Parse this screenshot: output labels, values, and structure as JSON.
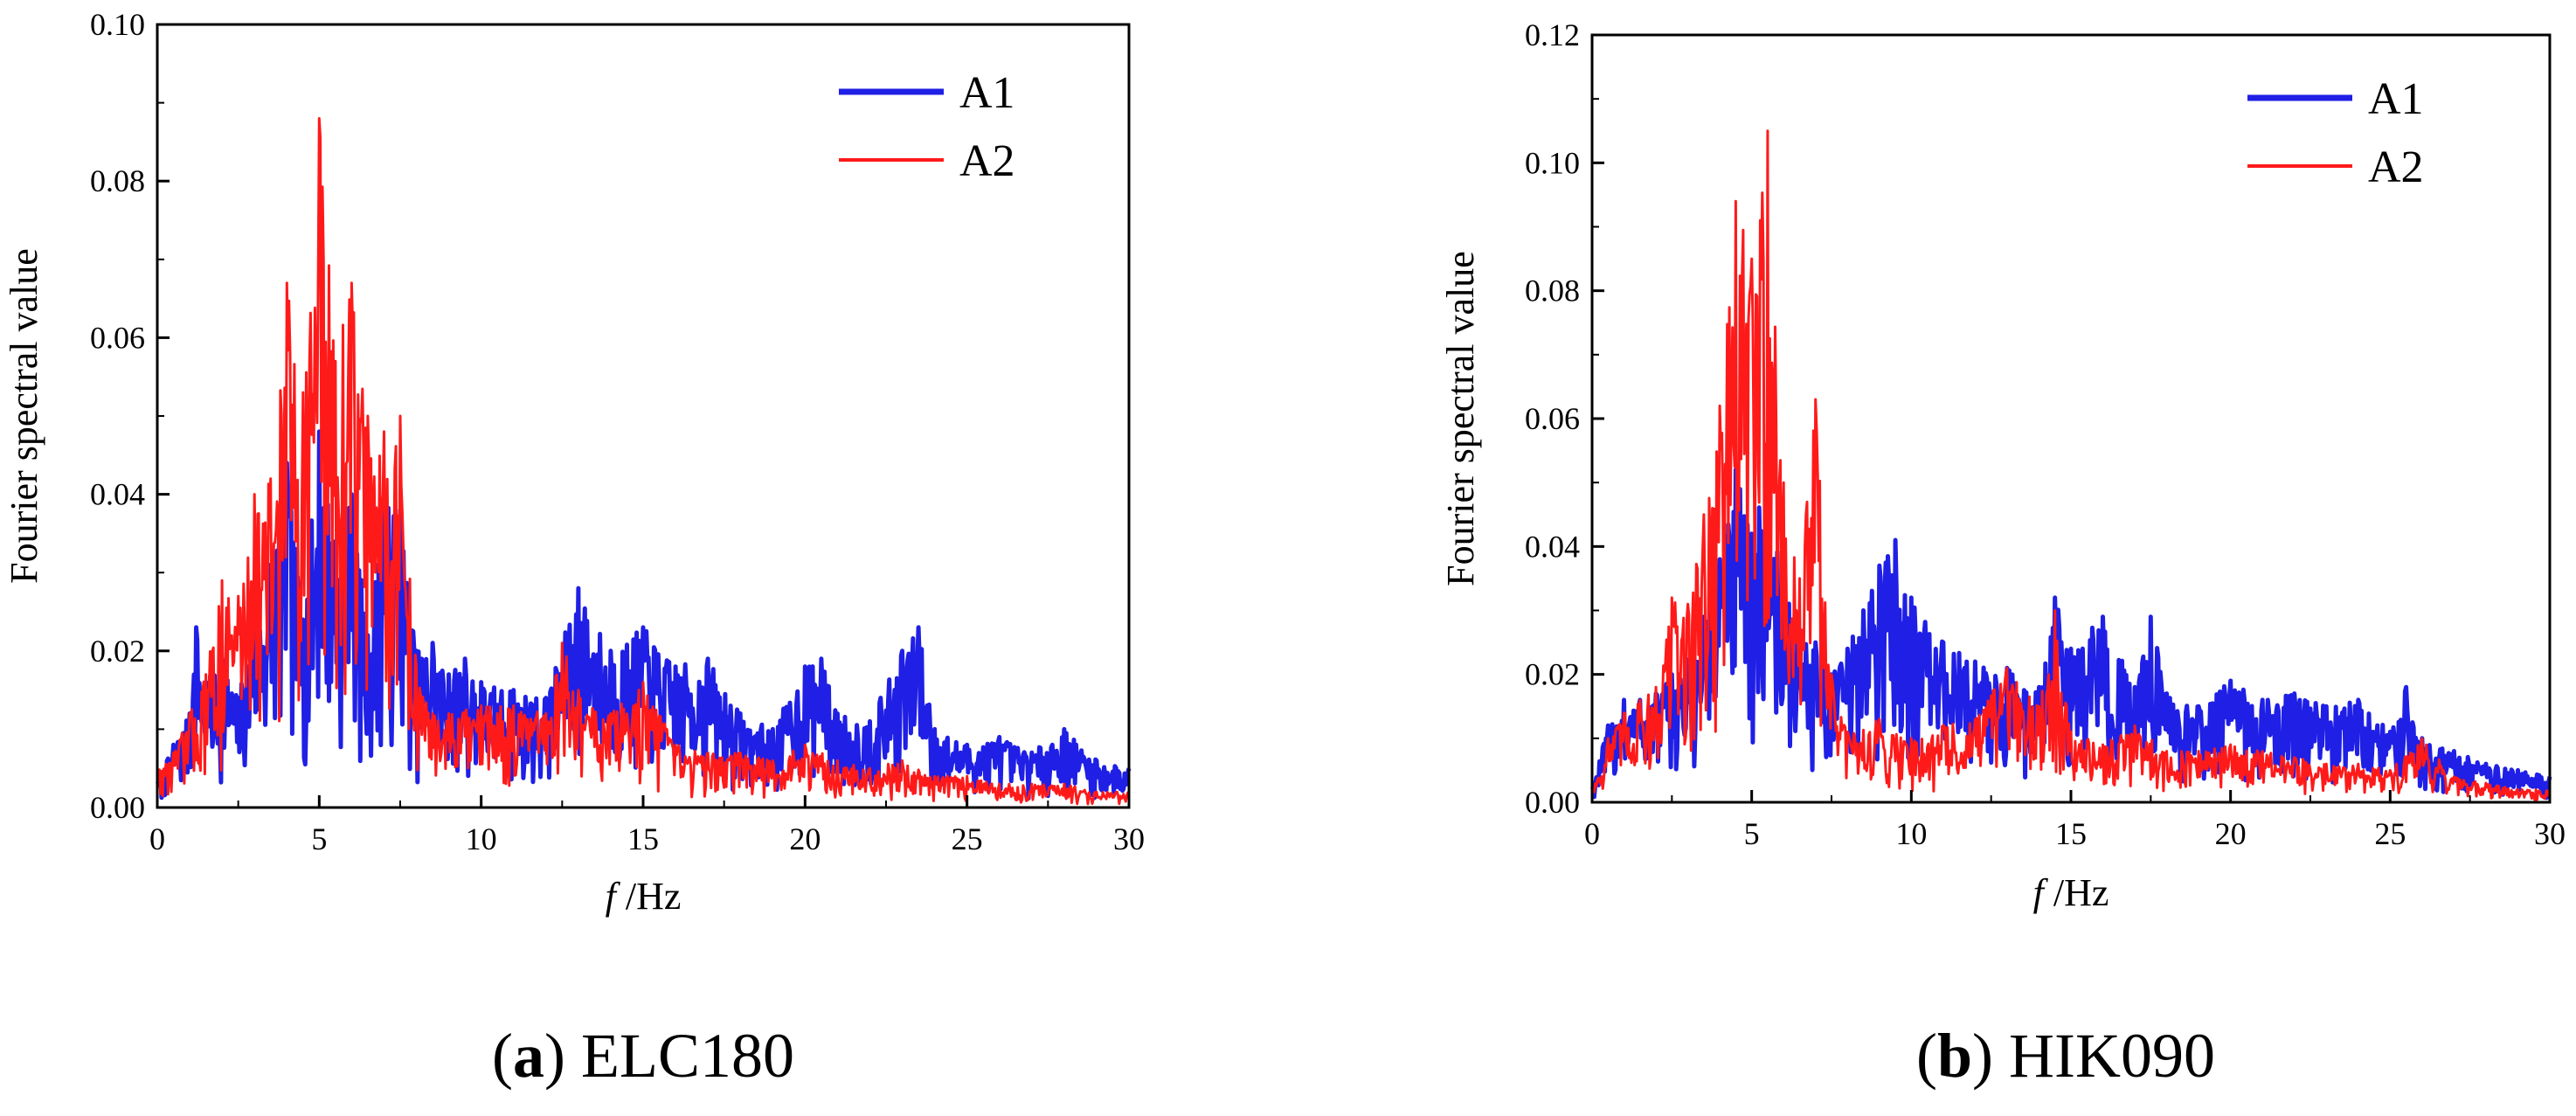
{
  "colors": {
    "A1": "#1f1fe6",
    "A2": "#ff1a1a",
    "axis": "#000000"
  },
  "chart_data": [
    {
      "type": "line",
      "panel_label": "a",
      "caption": "ELC180",
      "xlabel_var": "f",
      "xlabel_unit": "/Hz",
      "ylabel": "Fourier spectral value",
      "xlim": [
        0,
        30
      ],
      "ylim": [
        0,
        0.1
      ],
      "xticks": [
        0,
        5,
        10,
        15,
        20,
        25,
        30
      ],
      "xtick_labels": [
        "0",
        "5",
        "10",
        "15",
        "20",
        "25",
        "30"
      ],
      "yticks": [
        0,
        0.02,
        0.04,
        0.06,
        0.08,
        0.1
      ],
      "ytick_labels": [
        "0.00",
        "0.02",
        "0.04",
        "0.06",
        "0.08",
        "0.10"
      ],
      "legend_position": "top-right",
      "series": [
        {
          "name": "A1",
          "x": [
            0,
            0.5,
            1,
            1.2,
            1.5,
            2,
            2.5,
            3,
            3.5,
            4,
            4.5,
            5,
            5.5,
            6,
            6.5,
            7,
            7.5,
            8,
            8.5,
            9,
            9.5,
            10,
            11,
            12,
            13,
            14,
            15,
            16,
            17,
            18,
            19,
            20,
            20.5,
            21,
            22,
            23,
            23.5,
            24,
            25,
            26,
            27,
            28,
            29,
            30
          ],
          "y": [
            0.003,
            0.008,
            0.012,
            0.023,
            0.016,
            0.019,
            0.014,
            0.025,
            0.031,
            0.044,
            0.024,
            0.048,
            0.034,
            0.04,
            0.022,
            0.039,
            0.038,
            0.02,
            0.021,
            0.017,
            0.019,
            0.016,
            0.015,
            0.014,
            0.028,
            0.02,
            0.023,
            0.018,
            0.019,
            0.012,
            0.01,
            0.018,
            0.019,
            0.012,
            0.011,
            0.02,
            0.023,
            0.01,
            0.008,
            0.009,
            0.007,
            0.01,
            0.006,
            0.005
          ]
        },
        {
          "name": "A2",
          "x": [
            0,
            0.5,
            1,
            1.5,
            2,
            2.5,
            3,
            3.5,
            4,
            4.5,
            5,
            5.5,
            6,
            6.5,
            7,
            7.5,
            8,
            8.5,
            9,
            10,
            11,
            12,
            12.5,
            13,
            14,
            15,
            16,
            17,
            18,
            19,
            20,
            21,
            22,
            23,
            24,
            25,
            26,
            27,
            28,
            29,
            30
          ],
          "y": [
            0.005,
            0.007,
            0.012,
            0.017,
            0.029,
            0.027,
            0.04,
            0.042,
            0.067,
            0.053,
            0.088,
            0.057,
            0.067,
            0.05,
            0.048,
            0.05,
            0.018,
            0.012,
            0.012,
            0.013,
            0.013,
            0.012,
            0.021,
            0.015,
            0.012,
            0.016,
            0.008,
            0.007,
            0.007,
            0.006,
            0.008,
            0.006,
            0.005,
            0.006,
            0.004,
            0.004,
            0.003,
            0.003,
            0.003,
            0.002,
            0.002
          ]
        }
      ]
    },
    {
      "type": "line",
      "panel_label": "b",
      "caption": "HIK090",
      "xlabel_var": "f",
      "xlabel_unit": "/Hz",
      "ylabel": "Fourier spectral value",
      "xlim": [
        0,
        30
      ],
      "ylim": [
        0,
        0.12
      ],
      "xticks": [
        0,
        5,
        10,
        15,
        20,
        25,
        30
      ],
      "xtick_labels": [
        "0",
        "5",
        "10",
        "15",
        "20",
        "25",
        "30"
      ],
      "yticks": [
        0,
        0.02,
        0.04,
        0.06,
        0.08,
        0.1,
        0.12
      ],
      "ytick_labels": [
        "0.00",
        "0.02",
        "0.04",
        "0.06",
        "0.08",
        "0.10",
        "0.12"
      ],
      "legend_position": "top-right",
      "series": [
        {
          "name": "A1",
          "x": [
            0,
            0.5,
            1,
            1.5,
            2,
            2.5,
            3,
            3.5,
            4,
            4.5,
            5,
            5.5,
            6,
            6.5,
            7,
            7.5,
            8,
            8.5,
            9,
            9.5,
            10,
            11,
            12,
            13,
            14,
            14.5,
            15,
            16,
            17,
            17.5,
            18,
            19,
            20,
            21,
            22,
            23,
            24,
            25,
            25.5,
            26,
            27,
            28,
            29,
            30
          ],
          "y": [
            0.002,
            0.012,
            0.016,
            0.016,
            0.017,
            0.02,
            0.022,
            0.029,
            0.038,
            0.052,
            0.042,
            0.051,
            0.034,
            0.027,
            0.025,
            0.02,
            0.024,
            0.03,
            0.037,
            0.041,
            0.032,
            0.025,
            0.022,
            0.021,
            0.018,
            0.032,
            0.024,
            0.029,
            0.018,
            0.029,
            0.017,
            0.015,
            0.019,
            0.016,
            0.017,
            0.015,
            0.016,
            0.011,
            0.018,
            0.01,
            0.008,
            0.006,
            0.005,
            0.004
          ]
        },
        {
          "name": "A2",
          "x": [
            0,
            0.5,
            1,
            1.5,
            2,
            2.5,
            3,
            3.5,
            4,
            4.5,
            5,
            5.5,
            6,
            6.5,
            7,
            7.5,
            8,
            9,
            10,
            11,
            12,
            13,
            14,
            14.5,
            15,
            16,
            17,
            18,
            19,
            20,
            21,
            22,
            23,
            24,
            25,
            26,
            27,
            28,
            29,
            30
          ],
          "y": [
            0.002,
            0.01,
            0.014,
            0.016,
            0.018,
            0.032,
            0.031,
            0.045,
            0.062,
            0.094,
            0.085,
            0.105,
            0.05,
            0.035,
            0.063,
            0.02,
            0.011,
            0.013,
            0.01,
            0.012,
            0.013,
            0.021,
            0.015,
            0.03,
            0.011,
            0.009,
            0.012,
            0.008,
            0.008,
            0.009,
            0.008,
            0.007,
            0.006,
            0.006,
            0.005,
            0.01,
            0.004,
            0.003,
            0.002,
            0.002
          ]
        }
      ]
    }
  ]
}
